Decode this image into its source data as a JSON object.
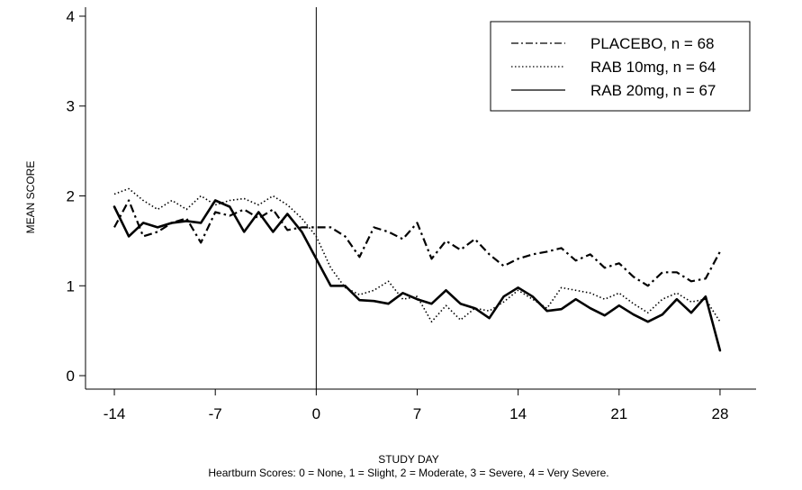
{
  "chart_data": {
    "type": "line",
    "title": "",
    "xlabel": "STUDY DAY",
    "ylabel": "MEAN SCORE",
    "note": "Heartburn Scores: 0 = None, 1 = Slight, 2 = Moderate, 3 = Severe, 4 = Very Severe.",
    "xlim": [
      -16,
      30.5
    ],
    "ylim": [
      -0.15,
      4.1
    ],
    "xticks": [
      -14,
      -7,
      0,
      7,
      14,
      21,
      28
    ],
    "yticks": [
      0,
      1,
      2,
      3,
      4
    ],
    "grid": false,
    "legend_position": "top-right",
    "reference_line_x": 0,
    "series": [
      {
        "name": "PLACEBO, n = 68",
        "line_style": "dash-dot",
        "color": "#000000",
        "x": [
          -14,
          -13,
          -12,
          -11,
          -10,
          -9,
          -8,
          -7,
          -6,
          -5,
          -4,
          -3,
          -2,
          -1,
          0,
          1,
          2,
          3,
          4,
          5,
          6,
          7,
          8,
          9,
          10,
          11,
          12,
          13,
          14,
          15,
          16,
          17,
          18,
          19,
          20,
          21,
          22,
          23,
          24,
          25,
          26,
          27,
          28
        ],
        "y": [
          1.65,
          1.95,
          1.55,
          1.6,
          1.7,
          1.75,
          1.48,
          1.82,
          1.78,
          1.85,
          1.75,
          1.85,
          1.62,
          1.65,
          1.65,
          1.65,
          1.55,
          1.32,
          1.65,
          1.6,
          1.52,
          1.7,
          1.3,
          1.5,
          1.4,
          1.52,
          1.35,
          1.22,
          1.3,
          1.35,
          1.38,
          1.42,
          1.28,
          1.35,
          1.2,
          1.25,
          1.1,
          1.0,
          1.15,
          1.15,
          1.05,
          1.08,
          1.38
        ]
      },
      {
        "name": "RAB 10mg, n = 64",
        "line_style": "dotted",
        "color": "#000000",
        "x": [
          -14,
          -13,
          -12,
          -11,
          -10,
          -9,
          -8,
          -7,
          -6,
          -5,
          -4,
          -3,
          -2,
          -1,
          0,
          1,
          2,
          3,
          4,
          5,
          6,
          7,
          8,
          9,
          10,
          11,
          12,
          13,
          14,
          15,
          16,
          17,
          18,
          19,
          20,
          21,
          22,
          23,
          24,
          25,
          26,
          27,
          28
        ],
        "y": [
          2.02,
          2.08,
          1.95,
          1.85,
          1.95,
          1.85,
          2.0,
          1.9,
          1.95,
          1.97,
          1.9,
          2.0,
          1.9,
          1.75,
          1.55,
          1.2,
          0.98,
          0.9,
          0.95,
          1.05,
          0.85,
          0.88,
          0.6,
          0.78,
          0.62,
          0.75,
          0.72,
          0.82,
          0.95,
          0.85,
          0.75,
          0.98,
          0.95,
          0.92,
          0.85,
          0.92,
          0.8,
          0.7,
          0.85,
          0.92,
          0.82,
          0.85,
          0.6
        ]
      },
      {
        "name": "RAB 20mg, n = 67",
        "line_style": "solid",
        "color": "#000000",
        "x": [
          -14,
          -13,
          -12,
          -11,
          -10,
          -9,
          -8,
          -7,
          -6,
          -5,
          -4,
          -3,
          -2,
          -1,
          0,
          1,
          2,
          3,
          4,
          5,
          6,
          7,
          8,
          9,
          10,
          11,
          12,
          13,
          14,
          15,
          16,
          17,
          18,
          19,
          20,
          21,
          22,
          23,
          24,
          25,
          26,
          27,
          28
        ],
        "y": [
          1.88,
          1.55,
          1.7,
          1.65,
          1.7,
          1.72,
          1.7,
          1.95,
          1.88,
          1.6,
          1.82,
          1.6,
          1.8,
          1.6,
          1.3,
          1.0,
          1.0,
          0.84,
          0.83,
          0.8,
          0.92,
          0.85,
          0.8,
          0.95,
          0.8,
          0.75,
          0.64,
          0.88,
          0.98,
          0.88,
          0.72,
          0.74,
          0.85,
          0.75,
          0.67,
          0.78,
          0.68,
          0.6,
          0.68,
          0.85,
          0.7,
          0.88,
          0.28
        ]
      }
    ]
  }
}
